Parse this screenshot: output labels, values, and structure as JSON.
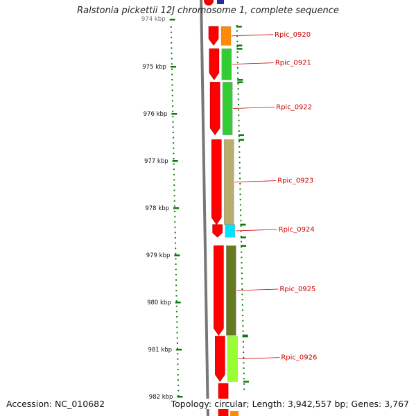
{
  "title": "Ralstonia pickettii 12J chromosome 1, complete sequence",
  "footer": {
    "accession": "Accession: NC_010682",
    "topology": "Topology: circular; Length: 3,942,557 bp; Genes: 3,767"
  },
  "scale": {
    "unit": "kbp",
    "ticks": [
      "974 kbp",
      "975 kbp",
      "976 kbp",
      "977 kbp",
      "978 kbp",
      "979 kbp",
      "980 kbp",
      "981 kbp",
      "982 kbp"
    ]
  },
  "genes": [
    {
      "id": "Rpic_0920",
      "start_kbp": 974.15,
      "end_kbp": 974.55,
      "strand": "-",
      "cog_color": "#ff8c00"
    },
    {
      "id": "Rpic_0921",
      "start_kbp": 974.62,
      "end_kbp": 975.28,
      "strand": "-",
      "cog_color": "#33cc33"
    },
    {
      "id": "Rpic_0922",
      "start_kbp": 975.33,
      "end_kbp": 976.45,
      "strand": "-",
      "cog_color": "#33cc33"
    },
    {
      "id": "Rpic_0923",
      "start_kbp": 976.55,
      "end_kbp": 978.35,
      "strand": "-",
      "cog_color": "#b8ad6c"
    },
    {
      "id": "Rpic_0924",
      "start_kbp": 978.35,
      "end_kbp": 978.62,
      "strand": "-",
      "cog_color": "#00e5ff"
    },
    {
      "id": "Rpic_0925",
      "start_kbp": 978.8,
      "end_kbp": 980.7,
      "strand": "-",
      "cog_color": "#667a22"
    },
    {
      "id": "Rpic_0926",
      "start_kbp": 980.72,
      "end_kbp": 981.68,
      "strand": "-",
      "cog_color": "#99ff33"
    }
  ]
}
